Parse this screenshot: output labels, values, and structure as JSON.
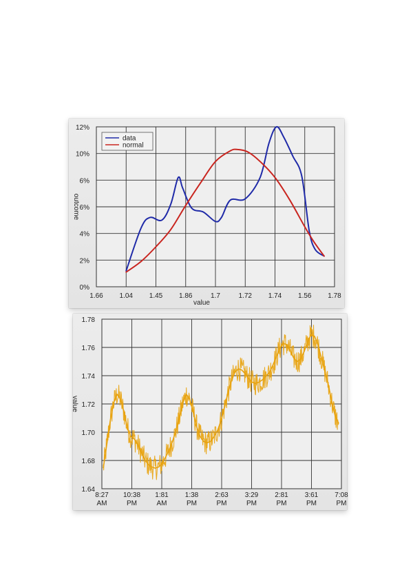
{
  "chart_data": [
    {
      "type": "line",
      "xlabel": "value",
      "ylabel": "outcome",
      "x_tick_labels": [
        "1.66",
        "1.04",
        "1.45",
        "1.86",
        "1.7",
        "1.72",
        "1.74",
        "1.56",
        "1.78"
      ],
      "y_tick_labels": [
        "0%",
        "2%",
        "4%",
        "6%",
        "6%",
        "10%",
        "12%"
      ],
      "ylim": [
        0,
        12
      ],
      "grid": true,
      "legend_position": "top-left",
      "series": [
        {
          "name": "data",
          "color": "#1f2aa8",
          "points": [
            [
              1.0,
              1.2
            ],
            [
              1.5,
              4.4
            ],
            [
              1.8,
              5.2
            ],
            [
              2.2,
              5.0
            ],
            [
              2.5,
              6.2
            ],
            [
              2.75,
              8.2
            ],
            [
              2.9,
              7.4
            ],
            [
              3.2,
              5.9
            ],
            [
              3.6,
              5.6
            ],
            [
              4.0,
              4.9
            ],
            [
              4.2,
              5.2
            ],
            [
              4.5,
              6.5
            ],
            [
              5.0,
              6.6
            ],
            [
              5.5,
              8.2
            ],
            [
              5.8,
              10.8
            ],
            [
              6.05,
              12.0
            ],
            [
              6.3,
              11.2
            ],
            [
              6.6,
              9.8
            ],
            [
              6.9,
              8.3
            ],
            [
              7.15,
              4.2
            ],
            [
              7.35,
              2.8
            ],
            [
              7.65,
              2.3
            ]
          ]
        },
        {
          "name": "normal",
          "color": "#c9251f",
          "points": [
            [
              1.0,
              1.1
            ],
            [
              1.5,
              1.9
            ],
            [
              2.0,
              3.0
            ],
            [
              2.5,
              4.3
            ],
            [
              3.0,
              6.1
            ],
            [
              3.5,
              7.8
            ],
            [
              4.0,
              9.4
            ],
            [
              4.5,
              10.2
            ],
            [
              4.75,
              10.3
            ],
            [
              5.1,
              10.1
            ],
            [
              5.5,
              9.4
            ],
            [
              6.0,
              8.2
            ],
            [
              6.5,
              6.5
            ],
            [
              7.0,
              4.5
            ],
            [
              7.3,
              3.4
            ],
            [
              7.65,
              2.3
            ]
          ]
        }
      ]
    },
    {
      "type": "line",
      "xlabel": "",
      "ylabel": "value",
      "x_tick_labels": [
        [
          "8:27",
          "AM"
        ],
        [
          "10:38",
          "PM"
        ],
        [
          "1:81",
          "AM"
        ],
        [
          "1:38",
          "PM"
        ],
        [
          "2:63",
          "PM"
        ],
        [
          "3:29",
          "PM"
        ],
        [
          "2:81",
          "PM"
        ],
        [
          "3:61",
          "PM"
        ],
        [
          "7:08",
          "PM"
        ]
      ],
      "y_tick_labels": [
        "1.64",
        "1.68",
        "1.70",
        "1.72",
        "1.74",
        "1.76",
        "1.78"
      ],
      "ylim": [
        1.64,
        1.78
      ],
      "grid": true,
      "series": [
        {
          "color": "#e8a20c",
          "values": [
            1.657,
            1.676,
            1.696,
            1.711,
            1.718,
            1.714,
            1.703,
            1.69,
            1.683,
            1.681,
            1.676,
            1.67,
            1.664,
            1.66,
            1.658,
            1.657,
            1.658,
            1.661,
            1.666,
            1.672,
            1.679,
            1.688,
            1.699,
            1.711,
            1.718,
            1.714,
            1.703,
            1.691,
            1.683,
            1.679,
            1.678,
            1.679,
            1.683,
            1.688,
            1.696,
            1.707,
            1.719,
            1.729,
            1.736,
            1.739,
            1.738,
            1.735,
            1.731,
            1.728,
            1.727,
            1.728,
            1.73,
            1.733,
            1.736,
            1.742,
            1.749,
            1.756,
            1.76,
            1.759,
            1.754,
            1.748,
            1.745,
            1.747,
            1.753,
            1.761,
            1.767,
            1.766,
            1.759,
            1.748,
            1.737,
            1.726,
            1.712,
            1.7,
            1.694
          ]
        }
      ]
    }
  ]
}
